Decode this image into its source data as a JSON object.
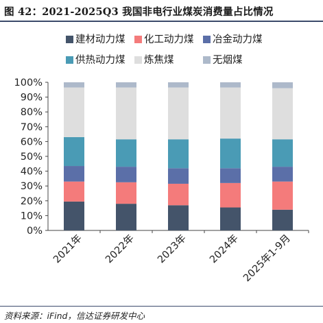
{
  "title": "图 42：2021-2025Q3 我国非电行业煤炭消费量占比情况",
  "source": "资料来源：iFind，信达证券研发中心",
  "chart_data": {
    "type": "bar",
    "stacked": true,
    "categories": [
      "2021年",
      "2022年",
      "2023年",
      "2024年",
      "2025年1-9月"
    ],
    "ylim": [
      0,
      100
    ],
    "yticks": [
      "0%",
      "10%",
      "20%",
      "30%",
      "40%",
      "50%",
      "60%",
      "70%",
      "80%",
      "90%",
      "100%"
    ],
    "grid": false,
    "legend_position": "top",
    "series": [
      {
        "name": "建材动力煤",
        "color": "#44546a",
        "values": [
          19.5,
          18.0,
          17.0,
          15.5,
          14.0
        ]
      },
      {
        "name": "化工动力煤",
        "color": "#f47b7b",
        "values": [
          13.5,
          14.5,
          14.5,
          16.5,
          19.0
        ]
      },
      {
        "name": "冶金动力煤",
        "color": "#5b6fa8",
        "values": [
          10.5,
          10.5,
          10.5,
          10.0,
          10.0
        ]
      },
      {
        "name": "供热动力煤",
        "color": "#4a9bb5",
        "values": [
          19.5,
          18.5,
          19.5,
          20.0,
          18.5
        ]
      },
      {
        "name": "炼焦煤",
        "color": "#dedede",
        "values": [
          33.5,
          35.0,
          35.0,
          34.5,
          34.5
        ]
      },
      {
        "name": "无烟煤",
        "color": "#adb9ca",
        "values": [
          3.5,
          3.5,
          3.5,
          3.5,
          4.0
        ]
      }
    ]
  }
}
